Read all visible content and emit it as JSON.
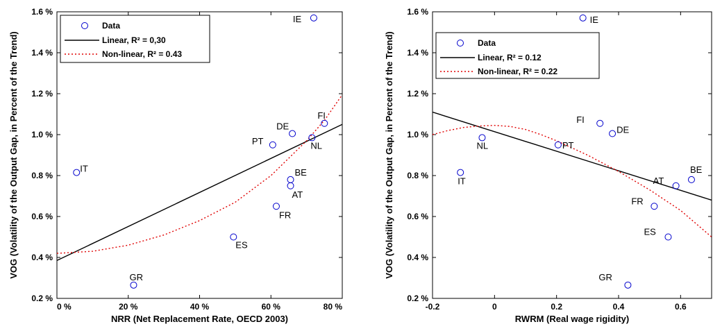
{
  "chart_data": [
    {
      "type": "scatter",
      "xlabel": "NRR (Net Replacement Rate, OECD 2003)",
      "ylabel": "VOG (Volatility of the Output Gap, in Percent of the Trend)",
      "xlim": [
        0,
        80
      ],
      "ylim": [
        0.2,
        1.6
      ],
      "xticks": [
        "0 %",
        "20 %",
        "40 %",
        "60 %",
        "80 %"
      ],
      "yticks": [
        "0.2 %",
        "0.4 %",
        "0.6 %",
        "0.8 %",
        "1.0 %",
        "1.2 %",
        "1.4 %",
        "1.6 %"
      ],
      "legend_position": "top-left",
      "legend": {
        "data": "Data",
        "linear": "Linear, R² = 0,30",
        "nonlinear": "Non-linear, R² = 0.43"
      },
      "points": [
        {
          "label": "IE",
          "x": 72,
          "y": 1.57
        },
        {
          "label": "FI",
          "x": 75,
          "y": 1.055
        },
        {
          "label": "DE",
          "x": 66,
          "y": 1.005
        },
        {
          "label": "NL",
          "x": 71.5,
          "y": 0.985
        },
        {
          "label": "PT",
          "x": 60.5,
          "y": 0.95
        },
        {
          "label": "IT",
          "x": 5.5,
          "y": 0.815
        },
        {
          "label": "BE",
          "x": 65.5,
          "y": 0.78
        },
        {
          "label": "AT",
          "x": 65.5,
          "y": 0.75
        },
        {
          "label": "FR",
          "x": 61.5,
          "y": 0.65
        },
        {
          "label": "ES",
          "x": 49.5,
          "y": 0.5
        },
        {
          "label": "GR",
          "x": 21.5,
          "y": 0.265
        }
      ],
      "linear_fit": [
        [
          0,
          0.385
        ],
        [
          80,
          1.05
        ]
      ],
      "nonlinear_fit": [
        [
          0,
          0.42
        ],
        [
          10,
          0.43
        ],
        [
          20,
          0.46
        ],
        [
          30,
          0.51
        ],
        [
          40,
          0.58
        ],
        [
          50,
          0.67
        ],
        [
          60,
          0.8
        ],
        [
          70,
          0.97
        ],
        [
          75,
          1.07
        ],
        [
          80,
          1.195
        ]
      ]
    },
    {
      "type": "scatter",
      "xlabel": "RWRM (Real wage rigidity)",
      "ylabel": "VOG (Volatility of the Output Gap, in Percent of the Trend)",
      "xlim": [
        -0.2,
        0.7
      ],
      "ylim": [
        0.2,
        1.6
      ],
      "xticks": [
        "-0.2",
        "0",
        "0.2",
        "0.4",
        "0.6"
      ],
      "yticks": [
        "0.2 %",
        "0.4 %",
        "0.6 %",
        "0.8 %",
        "1.0 %",
        "1.2 %",
        "1.4 %",
        "1.6 %"
      ],
      "legend_position": "top-left",
      "legend": {
        "data": "Data",
        "linear": "Linear, R² = 0.12",
        "nonlinear": "Non-linear, R² = 0.22"
      },
      "points": [
        {
          "label": "IE",
          "x": 0.285,
          "y": 1.57
        },
        {
          "label": "FI",
          "x": 0.34,
          "y": 1.055
        },
        {
          "label": "DE",
          "x": 0.38,
          "y": 1.005
        },
        {
          "label": "NL",
          "x": -0.04,
          "y": 0.985
        },
        {
          "label": "PT",
          "x": 0.205,
          "y": 0.95
        },
        {
          "label": "IT",
          "x": -0.11,
          "y": 0.815
        },
        {
          "label": "BE",
          "x": 0.635,
          "y": 0.78
        },
        {
          "label": "AT",
          "x": 0.585,
          "y": 0.75
        },
        {
          "label": "FR",
          "x": 0.515,
          "y": 0.65
        },
        {
          "label": "ES",
          "x": 0.56,
          "y": 0.5
        },
        {
          "label": "GR",
          "x": 0.43,
          "y": 0.265
        }
      ],
      "linear_fit": [
        [
          -0.2,
          1.11
        ],
        [
          0.7,
          0.68
        ]
      ],
      "nonlinear_fit": [
        [
          -0.2,
          1.0
        ],
        [
          -0.15,
          1.02
        ],
        [
          -0.1,
          1.035
        ],
        [
          -0.05,
          1.042
        ],
        [
          0,
          1.045
        ],
        [
          0.05,
          1.04
        ],
        [
          0.1,
          1.025
        ],
        [
          0.15,
          1.0
        ],
        [
          0.2,
          0.97
        ],
        [
          0.3,
          0.9
        ],
        [
          0.4,
          0.82
        ],
        [
          0.5,
          0.73
        ],
        [
          0.6,
          0.63
        ],
        [
          0.7,
          0.5
        ]
      ]
    }
  ]
}
